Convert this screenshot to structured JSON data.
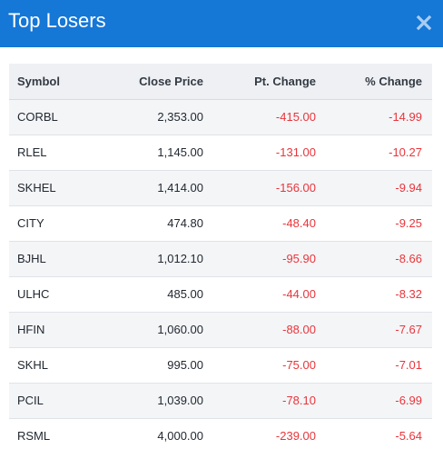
{
  "header": {
    "title": "Top Losers",
    "close_icon": "close-icon"
  },
  "table": {
    "columns": [
      "Symbol",
      "Close Price",
      "Pt. Change",
      "% Change"
    ],
    "rows": [
      {
        "symbol": "CORBL",
        "close_price": "2,353.00",
        "pt_change": "-415.00",
        "pct_change": "-14.99"
      },
      {
        "symbol": "RLEL",
        "close_price": "1,145.00",
        "pt_change": "-131.00",
        "pct_change": "-10.27"
      },
      {
        "symbol": "SKHEL",
        "close_price": "1,414.00",
        "pt_change": "-156.00",
        "pct_change": "-9.94"
      },
      {
        "symbol": "CITY",
        "close_price": "474.80",
        "pt_change": "-48.40",
        "pct_change": "-9.25"
      },
      {
        "symbol": "BJHL",
        "close_price": "1,012.10",
        "pt_change": "-95.90",
        "pct_change": "-8.66"
      },
      {
        "symbol": "ULHC",
        "close_price": "485.00",
        "pt_change": "-44.00",
        "pct_change": "-8.32"
      },
      {
        "symbol": "HFIN",
        "close_price": "1,060.00",
        "pt_change": "-88.00",
        "pct_change": "-7.67"
      },
      {
        "symbol": "SKHL",
        "close_price": "995.00",
        "pt_change": "-75.00",
        "pct_change": "-7.01"
      },
      {
        "symbol": "PCIL",
        "close_price": "1,039.00",
        "pt_change": "-78.10",
        "pct_change": "-6.99"
      },
      {
        "symbol": "RSML",
        "close_price": "4,000.00",
        "pt_change": "-239.00",
        "pct_change": "-5.64"
      }
    ]
  },
  "colors": {
    "header_bg": "#1577d6",
    "negative": "#e8353b",
    "row_alt_bg": "#f4f5f7",
    "table_head_bg": "#eef0f3"
  }
}
